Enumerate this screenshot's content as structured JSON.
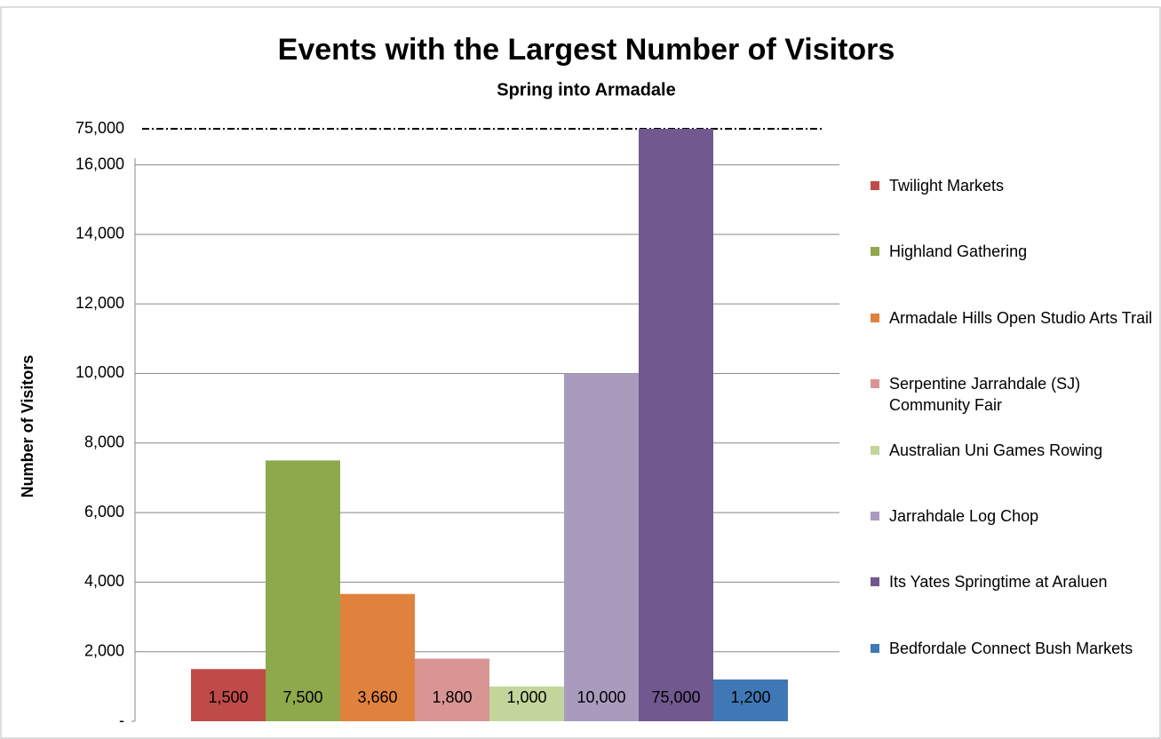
{
  "chart_data": {
    "type": "bar",
    "title": "Events with the Largest Number of Visitors",
    "subtitle": "Spring into Armadale",
    "y_label": "Number of Visitors",
    "categories": [
      "Twilight Markets",
      "Highland Gathering",
      "Armadale Hills Open Studio Arts Trail",
      "Serpentine Jarrahdale (SJ) Community Fair",
      "Australian Uni Games Rowing",
      "Jarrahdale Log Chop",
      "Its Yates Springtime at Araluen",
      "Bedfordale Connect Bush Markets"
    ],
    "values": [
      1500,
      7500,
      3660,
      1800,
      1000,
      10000,
      75000,
      1200
    ],
    "value_labels": [
      "1,500",
      "7,500",
      "3,660",
      "1,800",
      "1,000",
      "10,000",
      "75,000",
      "1,200"
    ],
    "colors": [
      "#be4b48",
      "#8ea84c",
      "#e0823d",
      "#d99594",
      "#c2d69b",
      "#a99bbd",
      "#71588f",
      "#3f78b5"
    ],
    "ylim": [
      0,
      75000
    ],
    "y_break": 16500,
    "yticks": [
      {
        "value": 0,
        "label": "-"
      },
      {
        "value": 2000,
        "label": "2,000"
      },
      {
        "value": 4000,
        "label": "4,000"
      },
      {
        "value": 6000,
        "label": "6,000"
      },
      {
        "value": 8000,
        "label": "8,000"
      },
      {
        "value": 10000,
        "label": "10,000"
      },
      {
        "value": 12000,
        "label": "12,000"
      },
      {
        "value": 14000,
        "label": "14,000"
      },
      {
        "value": 16000,
        "label": "16,000"
      },
      {
        "value": 75000,
        "label": "75,000"
      }
    ],
    "grid": true,
    "legend": "right"
  }
}
